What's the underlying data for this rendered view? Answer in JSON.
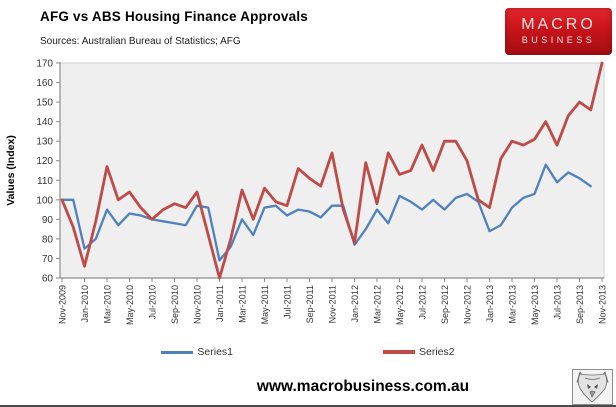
{
  "header": {
    "title": "AFG vs ABS Housing Finance Approvals",
    "sources": "Sources: Australian Bureau of Statistics; AFG"
  },
  "logo": {
    "line1": "MACRO",
    "line2": "BUSINESS",
    "bg_color": "#c8141a",
    "text_color": "#f6e3e3"
  },
  "footer": {
    "url": "www.macrobusiness.com.au"
  },
  "legend": [
    {
      "label": "Series1",
      "color": "#4F81BD"
    },
    {
      "label": "Series2",
      "color": "#BE4B48"
    }
  ],
  "chart_data": {
    "type": "line",
    "title": "AFG vs ABS Housing Finance Approvals",
    "ylabel": "Values (Index)",
    "xlabel": "",
    "ylim": [
      60,
      170
    ],
    "ytick_step": 10,
    "grid": "off",
    "legend_position": "bottom",
    "plot_bg": "#efefef",
    "axis_color": "#8c8c8c",
    "tick_label_color": "#333333",
    "x_tick_every": 2,
    "categories": [
      "Nov-2009",
      "Dec-2009",
      "Jan-2010",
      "Feb-2010",
      "Mar-2010",
      "Apr-2010",
      "May-2010",
      "Jun-2010",
      "Jul-2010",
      "Aug-2010",
      "Sep-2010",
      "Oct-2010",
      "Nov-2010",
      "Dec-2010",
      "Jan-2011",
      "Feb-2011",
      "Mar-2011",
      "Apr-2011",
      "May-2011",
      "Jun-2011",
      "Jul-2011",
      "Aug-2011",
      "Sep-2011",
      "Oct-2011",
      "Nov-2011",
      "Dec-2011",
      "Jan-2012",
      "Feb-2012",
      "Mar-2012",
      "Apr-2012",
      "May-2012",
      "Jun-2012",
      "Jul-2012",
      "Aug-2012",
      "Sep-2012",
      "Oct-2012",
      "Nov-2012",
      "Dec-2012",
      "Jan-2013",
      "Feb-2013",
      "Mar-2013",
      "Apr-2013",
      "May-2013",
      "Jun-2013",
      "Jul-2013",
      "Aug-2013",
      "Sep-2013",
      "Oct-2013",
      "Nov-2013"
    ],
    "series": [
      {
        "name": "Series1",
        "color": "#4F81BD",
        "stroke_width": 2.3,
        "values": [
          100,
          100,
          75,
          80,
          95,
          87,
          93,
          92,
          90,
          89,
          88,
          87,
          97,
          96,
          69,
          76,
          90,
          82,
          96,
          97,
          92,
          95,
          94,
          91,
          97,
          97,
          77,
          85,
          95,
          88,
          102,
          99,
          95,
          100,
          95,
          101,
          103,
          99,
          84,
          87,
          96,
          101,
          103,
          118,
          109,
          114,
          111,
          107,
          null
        ]
      },
      {
        "name": "Series2",
        "color": "#BE4B48",
        "stroke_width": 2.8,
        "values": [
          100,
          86,
          66,
          89,
          117,
          100,
          104,
          96,
          90,
          95,
          98,
          96,
          104,
          82,
          60,
          80,
          105,
          90,
          106,
          99,
          97,
          116,
          111,
          107,
          124,
          95,
          78,
          119,
          98,
          124,
          113,
          115,
          128,
          115,
          130,
          130,
          120,
          100,
          96,
          121,
          130,
          128,
          131,
          140,
          128,
          143,
          150,
          146,
          170
        ]
      }
    ]
  }
}
